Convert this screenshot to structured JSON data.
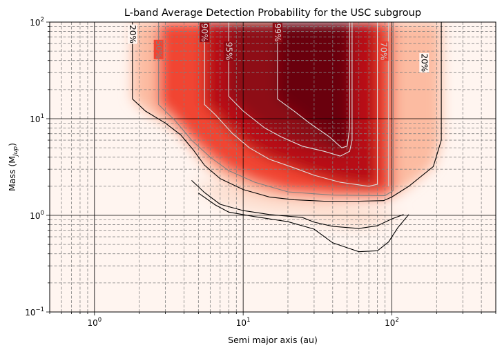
{
  "chart_data": {
    "type": "heatmap",
    "title": "L-band Average Detection Probability for the USC subgroup",
    "xlabel": "Semi major axis (au)",
    "ylabel_main": "Mass (M",
    "ylabel_sub": "Jup",
    "ylabel_end": ")",
    "xscale": "log",
    "yscale": "log",
    "xlim": [
      0.5,
      500
    ],
    "ylim": [
      0.1,
      100
    ],
    "x_ticks": [
      {
        "value": 1,
        "base": "10",
        "exp": "0"
      },
      {
        "value": 10,
        "base": "10",
        "exp": "1"
      },
      {
        "value": 100,
        "base": "10",
        "exp": "2"
      }
    ],
    "y_ticks": [
      {
        "value": 0.1,
        "base": "10",
        "exp": "−1"
      },
      {
        "value": 1,
        "base": "10",
        "exp": "0"
      },
      {
        "value": 10,
        "base": "10",
        "exp": "1"
      },
      {
        "value": 100,
        "base": "10",
        "exp": "2"
      }
    ],
    "grid": {
      "major": true,
      "minor": true
    },
    "colormap": "Reds",
    "contours": [
      {
        "level": "20%",
        "color": "#000000",
        "points": [
          [
            1.8,
            100
          ],
          [
            1.8,
            16
          ],
          [
            2.2,
            12
          ],
          [
            3,
            9
          ],
          [
            3.8,
            6.8
          ],
          [
            4.6,
            4.8
          ],
          [
            5.5,
            3.3
          ],
          [
            7,
            2.4
          ],
          [
            10,
            1.85
          ],
          [
            15,
            1.55
          ],
          [
            22,
            1.45
          ],
          [
            35,
            1.4
          ],
          [
            60,
            1.4
          ],
          [
            88,
            1.42
          ],
          [
            100,
            1.55
          ],
          [
            130,
            2
          ],
          [
            190,
            3.2
          ],
          [
            215,
            6
          ],
          [
            215,
            100
          ]
        ]
      },
      {
        "level": "10%",
        "color": "#000000",
        "points": [
          [
            4.5,
            2.3
          ],
          [
            5.5,
            1.72
          ],
          [
            7,
            1.3
          ],
          [
            10,
            1.12
          ],
          [
            15,
            1.02
          ],
          [
            25,
            0.95
          ],
          [
            30,
            0.85
          ],
          [
            40,
            0.77
          ],
          [
            60,
            0.73
          ],
          [
            80,
            0.78
          ],
          [
            100,
            0.92
          ],
          [
            120,
            1.02
          ]
        ]
      },
      {
        "level": "5%",
        "color": "#000000",
        "points": [
          [
            5,
            1.7
          ],
          [
            6.5,
            1.28
          ],
          [
            8,
            1.08
          ],
          [
            12,
            0.97
          ],
          [
            20,
            0.86
          ],
          [
            30,
            0.72
          ],
          [
            40,
            0.52
          ],
          [
            60,
            0.42
          ],
          [
            80,
            0.43
          ],
          [
            95,
            0.53
          ],
          [
            110,
            0.75
          ],
          [
            130,
            1.02
          ]
        ]
      },
      {
        "level": "50%",
        "color": "#808080",
        "points": [
          [
            2.7,
            100
          ],
          [
            2.7,
            14
          ],
          [
            3.5,
            9.5
          ],
          [
            4.5,
            6
          ],
          [
            6,
            4
          ],
          [
            8,
            2.9
          ],
          [
            12,
            2.2
          ],
          [
            20,
            1.75
          ],
          [
            40,
            1.62
          ],
          [
            90,
            1.6
          ],
          [
            102,
            1.8
          ],
          [
            102,
            100
          ]
        ]
      },
      {
        "level": "90%",
        "color": "#dddddd",
        "points": [
          [
            5.5,
            100
          ],
          [
            5.5,
            14
          ],
          [
            6.5,
            11
          ],
          [
            8.5,
            7
          ],
          [
            11,
            5
          ],
          [
            15,
            3.8
          ],
          [
            22,
            3.1
          ],
          [
            30,
            2.6
          ],
          [
            45,
            2.2
          ],
          [
            70,
            2
          ],
          [
            80,
            2.1
          ],
          [
            80,
            100
          ]
        ]
      },
      {
        "level": "95%",
        "color": "#dddddd",
        "points": [
          [
            8,
            100
          ],
          [
            8,
            17
          ],
          [
            10,
            12
          ],
          [
            14,
            8
          ],
          [
            18,
            6.5
          ],
          [
            25,
            5.2
          ],
          [
            35,
            4.6
          ],
          [
            45,
            4.1
          ],
          [
            52,
            4.6
          ],
          [
            54,
            6
          ],
          [
            54,
            100
          ]
        ]
      },
      {
        "level": "99%",
        "color": "#dddddd",
        "points": [
          [
            17,
            100
          ],
          [
            17,
            16
          ],
          [
            22,
            12
          ],
          [
            28,
            9
          ],
          [
            38,
            6.5
          ],
          [
            46,
            5
          ],
          [
            50,
            5.2
          ],
          [
            52,
            8
          ],
          [
            52,
            100
          ]
        ]
      },
      {
        "level": "70%",
        "color": "#cccccc",
        "points": [
          [
            95,
            100
          ],
          [
            95,
            2
          ]
        ]
      }
    ],
    "contour_labels": [
      {
        "text": "20%",
        "x": 1.8,
        "y": 75
      },
      {
        "text": "50%",
        "x": 2.7,
        "y": 52
      },
      {
        "text": "90%",
        "x": 5.5,
        "y": 78
      },
      {
        "text": "95%",
        "x": 8,
        "y": 50
      },
      {
        "text": "99%",
        "x": 17,
        "y": 78
      },
      {
        "text": "70%",
        "x": 88,
        "y": 50
      },
      {
        "text": "20%",
        "x": 165,
        "y": 38
      }
    ]
  }
}
